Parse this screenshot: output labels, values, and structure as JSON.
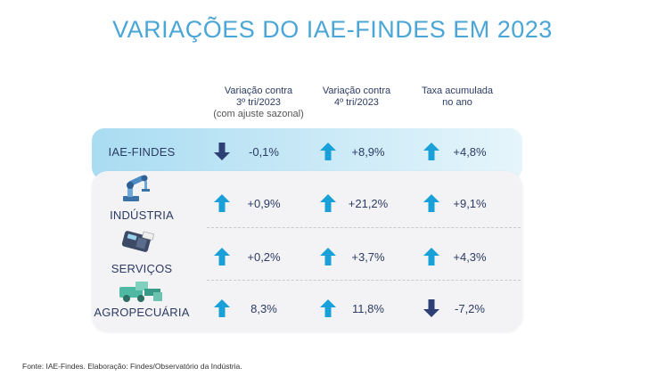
{
  "title": "VARIAÇÕES DO IAE-FINDES EM 2023",
  "columns": [
    {
      "line1": "Variação contra",
      "line2": "3º tri/2023",
      "line3": "(com ajuste sazonal)"
    },
    {
      "line1": "Variação contra",
      "line2": "4º tri/2023",
      "line3": ""
    },
    {
      "line1": "Taxa acumulada",
      "line2": "no ano",
      "line3": ""
    }
  ],
  "rows": [
    {
      "label": "IAE-FINDES",
      "icon": "none",
      "values": [
        {
          "text": "-0,1%",
          "dir": "down"
        },
        {
          "text": "+8,9%",
          "dir": "up"
        },
        {
          "text": "+4,8%",
          "dir": "up"
        }
      ]
    },
    {
      "label": "INDÚSTRIA",
      "icon": "robot-arm-icon",
      "values": [
        {
          "text": "+0,9%",
          "dir": "up"
        },
        {
          "text": "+21,2%",
          "dir": "up"
        },
        {
          "text": "+9,1%",
          "dir": "up"
        }
      ]
    },
    {
      "label": "SERVIÇOS",
      "icon": "card-machine-icon",
      "values": [
        {
          "text": "+0,2%",
          "dir": "up"
        },
        {
          "text": "+3,7%",
          "dir": "up"
        },
        {
          "text": "+4,3%",
          "dir": "up"
        }
      ]
    },
    {
      "label": "AGROPECUÁRIA",
      "icon": "harvester-icon",
      "values": [
        {
          "text": "8,3%",
          "dir": "up"
        },
        {
          "text": "11,8%",
          "dir": "up"
        },
        {
          "text": "-7,2%",
          "dir": "down"
        }
      ]
    }
  ],
  "colors": {
    "title": "#4aa6d6",
    "up_arrow": "#1aa0d8",
    "down_arrow": "#2e3f75",
    "text": "#2c3b63"
  },
  "source": "Fonte: IAE-Findes. Elaboração: Findes/Observatório da Indústria."
}
